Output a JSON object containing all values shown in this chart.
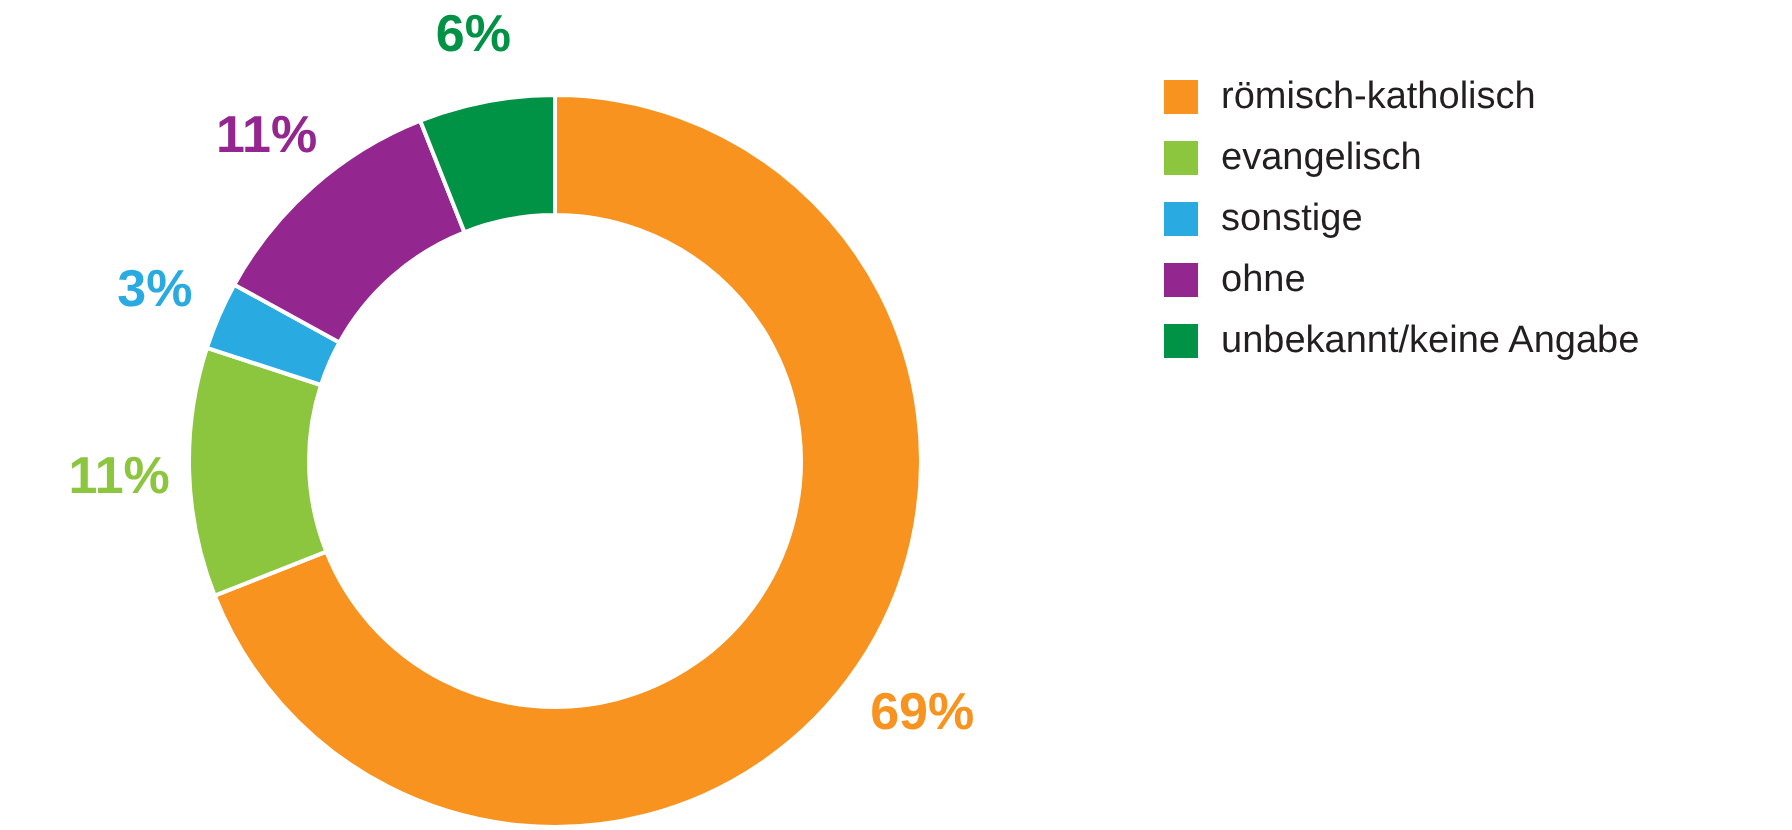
{
  "chart_data": {
    "type": "donut",
    "categories": [
      "römisch-katholisch",
      "evangelisch",
      "sonstige",
      "ohne",
      "unbekannt/keine Angabe"
    ],
    "values": [
      69,
      11,
      3,
      11,
      6
    ],
    "colors": [
      "#f7931e",
      "#8cc63f",
      "#29abe2",
      "#93278f",
      "#009245"
    ],
    "value_labels": [
      "69%",
      "11%",
      "3%",
      "11%",
      "6%"
    ],
    "legend": "right"
  }
}
